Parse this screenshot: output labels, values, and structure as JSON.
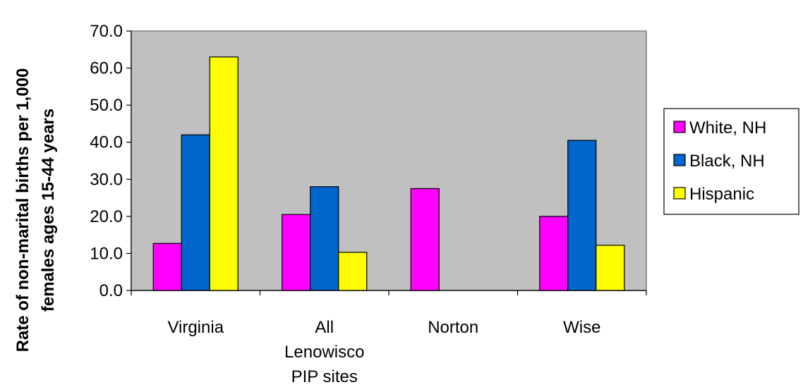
{
  "chart_data": {
    "type": "bar",
    "title": "",
    "xlabel": "",
    "ylabel_lines": [
      "Rate of non-marital births per 1,000",
      "females ages 15-44 years"
    ],
    "categories": [
      [
        "Virginia"
      ],
      [
        "All",
        "Lenowisco",
        "PIP sites"
      ],
      [
        "Norton"
      ],
      [
        "Wise"
      ]
    ],
    "ylim": [
      0,
      70
    ],
    "yticks": [
      "0.0",
      "10.0",
      "20.0",
      "30.0",
      "40.0",
      "50.0",
      "60.0",
      "70.0"
    ],
    "grid": false,
    "plot_background": "#c0c0c0",
    "legend_position": "right",
    "series": [
      {
        "name": "White, NH",
        "color": "#ff00ff",
        "values": [
          12.7,
          20.5,
          27.5,
          20.0
        ]
      },
      {
        "name": "Black, NH",
        "color": "#0066cc",
        "values": [
          42.0,
          28.0,
          null,
          40.5
        ]
      },
      {
        "name": "Hispanic",
        "color": "#ffff00",
        "values": [
          63.0,
          10.3,
          null,
          12.2
        ]
      }
    ]
  }
}
